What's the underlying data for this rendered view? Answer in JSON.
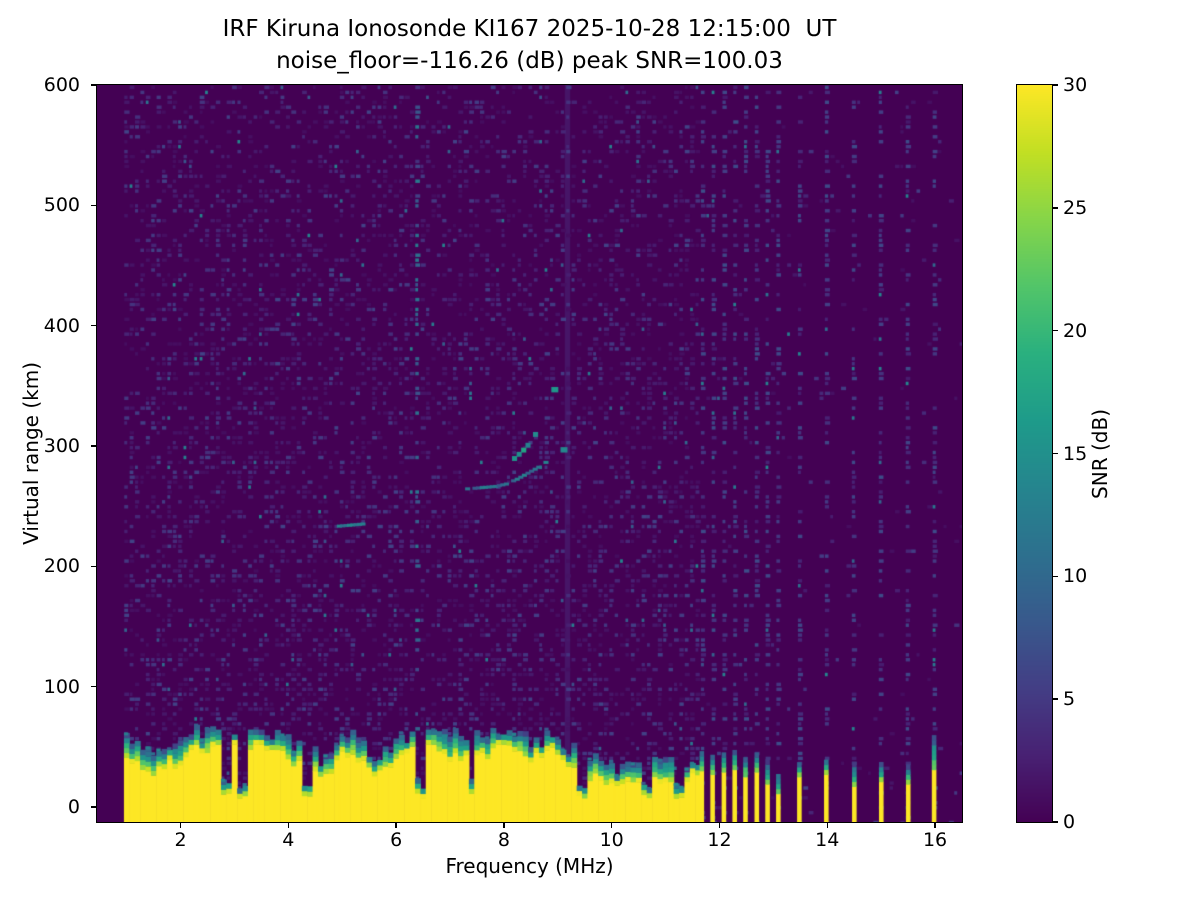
{
  "chart_data": {
    "type": "heatmap",
    "title_line1": "IRF Kiruna Ionosonde KI167 2025-10-28 12:15:00  UT",
    "title_line2": "noise_floor=-116.26 (dB) peak SNR=100.03",
    "station": "IRF Kiruna Ionosonde KI167",
    "datetime_ut": "2025-10-28 12:15:00 UT",
    "noise_floor_db": -116.26,
    "peak_snr_db": 100.03,
    "xlabel": "Frequency (MHz)",
    "ylabel": "Virtual range (km)",
    "xlim": [
      0.45,
      16.5
    ],
    "ylim": [
      -12.5,
      600
    ],
    "xticks": [
      2,
      4,
      6,
      8,
      10,
      12,
      14,
      16
    ],
    "yticks": [
      0,
      100,
      200,
      300,
      400,
      500,
      600
    ],
    "colorbar": {
      "label": "SNR (dB)",
      "vmin": 0,
      "vmax": 30,
      "ticks": [
        0,
        5,
        10,
        15,
        20,
        25,
        30
      ],
      "colormap": "viridis"
    },
    "content": {
      "data_freq_range_mhz": [
        0.95,
        16.45
      ],
      "background_snr_db": 0,
      "speckle_noise": {
        "freq_max_mhz": 11.56,
        "coverage": 0.26,
        "snr_range_db": [
          1,
          14
        ]
      },
      "ground_clutter_band": {
        "freq_range_mhz": [
          0.95,
          11.56
        ],
        "yellow_top_km_range": [
          18,
          52
        ],
        "fringe_top_km_range": [
          28,
          66
        ],
        "snr_db": 30,
        "notches_mhz": [
          2.78,
          3.12,
          4.32,
          6.38,
          7.35,
          9.42,
          10.63,
          11.2
        ]
      },
      "clutter_columns": [
        {
          "f": 11.63,
          "top_km": 30,
          "fringe_km": 44
        },
        {
          "f": 11.83,
          "top_km": 27,
          "fringe_km": 42
        },
        {
          "f": 12.04,
          "top_km": 29,
          "fringe_km": 44
        },
        {
          "f": 12.24,
          "top_km": 31,
          "fringe_km": 46
        },
        {
          "f": 12.44,
          "top_km": 25,
          "fringe_km": 40
        },
        {
          "f": 12.65,
          "top_km": 29,
          "fringe_km": 44
        },
        {
          "f": 12.85,
          "top_km": 19,
          "fringe_km": 36
        },
        {
          "f": 13.05,
          "top_km": 11,
          "fringe_km": 26
        },
        {
          "f": 13.44,
          "top_km": 25,
          "fringe_km": 36
        },
        {
          "f": 13.94,
          "top_km": 27,
          "fringe_km": 38
        },
        {
          "f": 14.46,
          "top_km": 17,
          "fringe_km": 34
        },
        {
          "f": 14.96,
          "top_km": 21,
          "fringe_km": 34
        },
        {
          "f": 15.46,
          "top_km": 19,
          "fringe_km": 32
        },
        {
          "f": 15.94,
          "top_km": 31,
          "fringe_km": 58
        }
      ],
      "interference_stripes": [
        {
          "f_mhz": 6.32,
          "km_range": [
            60,
            600
          ],
          "snr_db_range": [
            4,
            13
          ],
          "style": "dashed"
        },
        {
          "f_mhz": 9.13,
          "km_range": [
            35,
            600
          ],
          "snr_db_range": [
            2,
            8
          ],
          "style": "continuous"
        }
      ],
      "interference_columns_mhz": [
        11.63,
        11.83,
        12.04,
        12.24,
        12.44,
        12.65,
        12.85,
        13.05,
        13.44,
        13.94,
        14.46,
        14.96,
        15.46,
        15.94
      ],
      "echo_traces": [
        {
          "name": "F-trace-lower",
          "snr_db": 11,
          "density": 0.85,
          "thick": false,
          "points_mhz_km": [
            [
              7.28,
              264
            ],
            [
              7.55,
              265
            ],
            [
              7.8,
              266
            ],
            [
              8.0,
              268
            ],
            [
              8.2,
              272
            ],
            [
              8.4,
              277
            ],
            [
              8.6,
              282
            ],
            [
              8.8,
              288
            ]
          ]
        },
        {
          "name": "F-trace-upper",
          "snr_db": 15,
          "density": 0.62,
          "thick": true,
          "points_mhz_km": [
            [
              8.15,
              290
            ],
            [
              8.32,
              297
            ],
            [
              8.48,
              305
            ],
            [
              8.6,
              315
            ],
            [
              8.7,
              325
            ],
            [
              8.8,
              336
            ],
            [
              8.9,
              347
            ]
          ]
        },
        {
          "name": "minor-echo",
          "snr_db": 12,
          "density": 0.9,
          "thick": false,
          "points_mhz_km": [
            [
              4.9,
              233
            ],
            [
              5.15,
              234
            ],
            [
              5.4,
              235
            ]
          ]
        }
      ],
      "echo_spots": [
        {
          "f": 9.07,
          "km": 297,
          "snr_db": 14
        },
        {
          "f": 8.9,
          "km": 347,
          "snr_db": 16
        }
      ]
    },
    "render": {
      "seed": 167,
      "freq_step_mhz": 0.1,
      "range_step_km": 4.1
    }
  }
}
